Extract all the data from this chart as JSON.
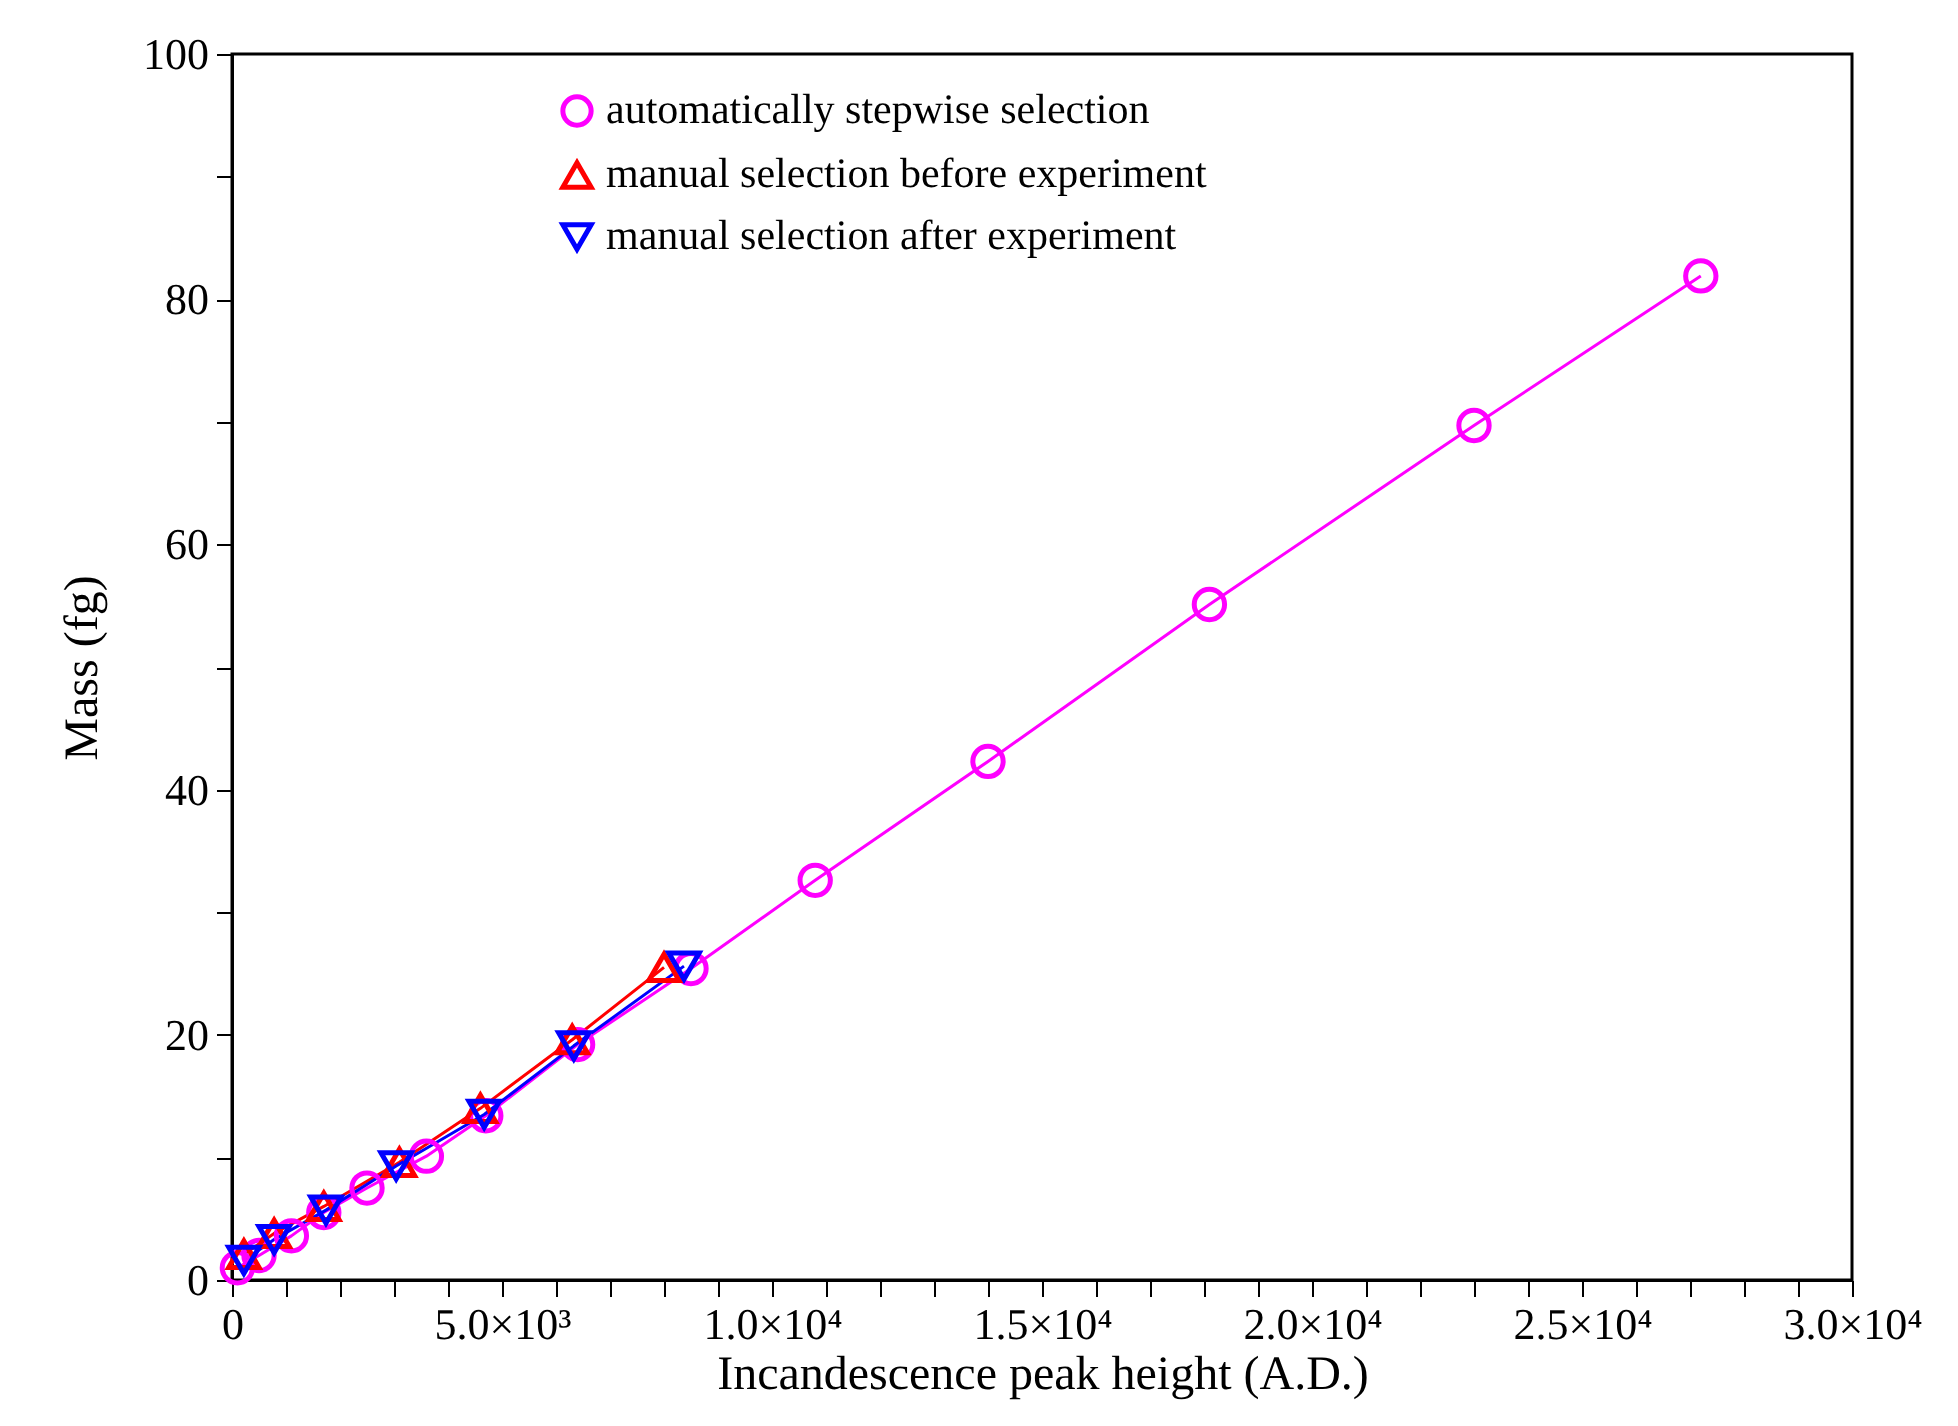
{
  "chart_data": {
    "type": "line",
    "xlabel": "Incandescence peak height (A.D.)",
    "ylabel": "Mass (fg)",
    "xlim": [
      0,
      30000
    ],
    "ylim": [
      0,
      100
    ],
    "xticks": [
      0,
      {
        "value": 1000,
        "label": null
      },
      {
        "value": 2000,
        "label": null
      },
      {
        "value": 3000,
        "label": null
      },
      {
        "value": 4000,
        "label": null
      },
      {
        "value": 5000,
        "label": "5.0×10³"
      },
      {
        "value": 6000,
        "label": null
      },
      {
        "value": 7000,
        "label": null
      },
      {
        "value": 8000,
        "label": null
      },
      {
        "value": 9000,
        "label": null
      },
      {
        "value": 10000,
        "label": "1.0×10⁴"
      },
      {
        "value": 11000,
        "label": null
      },
      {
        "value": 12000,
        "label": null
      },
      {
        "value": 13000,
        "label": null
      },
      {
        "value": 14000,
        "label": null
      },
      {
        "value": 15000,
        "label": "1.5×10⁴"
      },
      {
        "value": 16000,
        "label": null
      },
      {
        "value": 17000,
        "label": null
      },
      {
        "value": 18000,
        "label": null
      },
      {
        "value": 19000,
        "label": null
      },
      {
        "value": 20000,
        "label": "2.0×10⁴"
      },
      {
        "value": 21000,
        "label": null
      },
      {
        "value": 22000,
        "label": null
      },
      {
        "value": 23000,
        "label": null
      },
      {
        "value": 24000,
        "label": null
      },
      {
        "value": 25000,
        "label": "2.5×10⁴"
      },
      {
        "value": 26000,
        "label": null
      },
      {
        "value": 27000,
        "label": null
      },
      {
        "value": 28000,
        "label": null
      },
      {
        "value": 29000,
        "label": null
      },
      {
        "value": 30000,
        "label": "3.0×10⁴"
      }
    ],
    "yticks": [
      0,
      {
        "value": 10,
        "label": null
      },
      20,
      {
        "value": 30,
        "label": null
      },
      40,
      {
        "value": 50,
        "label": null
      },
      60,
      {
        "value": 70,
        "label": null
      },
      80,
      {
        "value": 90,
        "label": null
      },
      100
    ],
    "grid": false,
    "legend": "top",
    "line_style": "solid",
    "series": [
      {
        "name": "automatically stepwise selection",
        "color": "#ff00ff",
        "marker": "circle",
        "x": [
          100,
          500,
          1100,
          1700,
          2500,
          3600,
          4700,
          6400,
          8500,
          10800,
          14000,
          18100,
          23000,
          27200
        ],
        "values": [
          1.0,
          2.0,
          3.6,
          5.5,
          7.5,
          10.1,
          13.4,
          19.2,
          25.4,
          32.6,
          42.3,
          55.1,
          69.7,
          81.9
        ]
      },
      {
        "name": "manual selection before experiment",
        "color": "#ff0000",
        "marker": "triangle",
        "x": [
          220,
          780,
          1700,
          3100,
          4600,
          6300,
          8000
        ],
        "values": [
          2.1,
          3.8,
          6.0,
          9.6,
          14.0,
          19.6,
          25.5
        ]
      },
      {
        "name": "manual selection after experiment",
        "color": "#0000ff",
        "marker": "triangle-down",
        "x": [
          220,
          780,
          1740,
          3040,
          4670,
          6330,
          8370
        ],
        "values": [
          1.6,
          3.3,
          5.7,
          9.3,
          13.5,
          19.1,
          25.6
        ]
      }
    ]
  }
}
